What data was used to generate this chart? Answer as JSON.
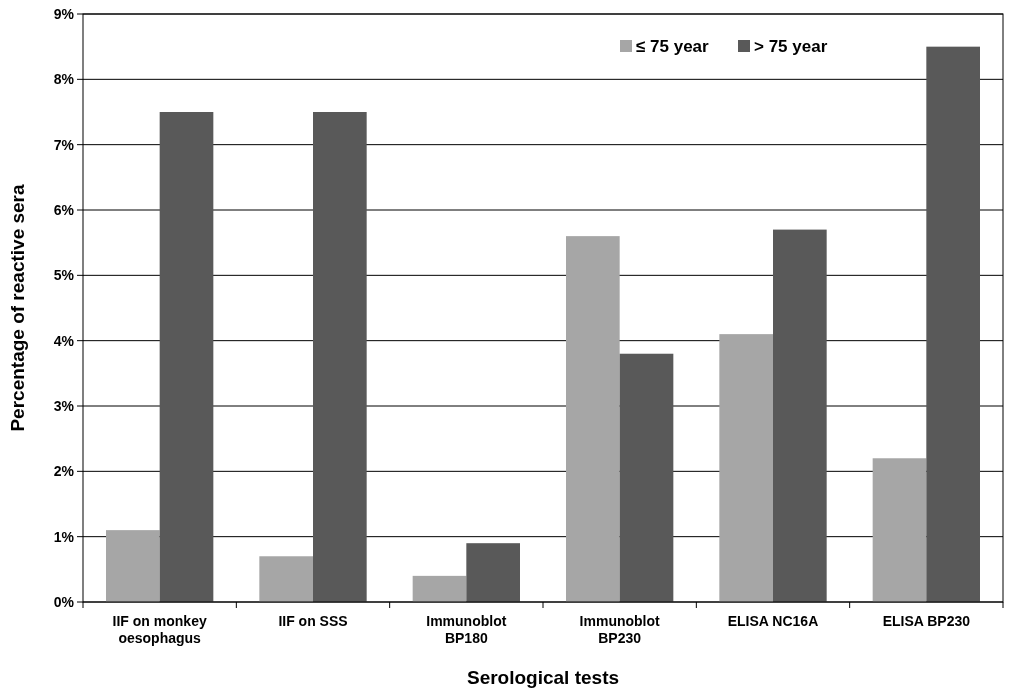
{
  "chart_data": {
    "type": "bar",
    "xlabel": "Serological tests",
    "ylabel": "Percentage of reactive sera",
    "categories": [
      "IIF on monkey oesophagus",
      "IIF on SSS",
      "Immunoblot BP180",
      "Immunoblot BP230",
      "ELISA NC16A",
      "ELISA BP230"
    ],
    "series": [
      {
        "name": "≤ 75 year",
        "color": "#a6a6a6",
        "values": [
          1.1,
          0.7,
          0.4,
          5.6,
          4.1,
          2.2
        ]
      },
      {
        "name": "> 75 year",
        "color": "#595959",
        "values": [
          7.5,
          7.5,
          0.9,
          3.8,
          5.7,
          8.5
        ]
      }
    ],
    "ylim": [
      0,
      9
    ],
    "yticks": [
      {
        "value": 0,
        "label": "0%"
      },
      {
        "value": 1,
        "label": "1%"
      },
      {
        "value": 2,
        "label": "2%"
      },
      {
        "value": 3,
        "label": "3%"
      },
      {
        "value": 4,
        "label": "4%"
      },
      {
        "value": 5,
        "label": "5%"
      },
      {
        "value": 6,
        "label": "6%"
      },
      {
        "value": 7,
        "label": "7%"
      },
      {
        "value": 8,
        "label": "8%"
      },
      {
        "value": 9,
        "label": "9%"
      }
    ],
    "grid": "y",
    "legend": "top right"
  }
}
